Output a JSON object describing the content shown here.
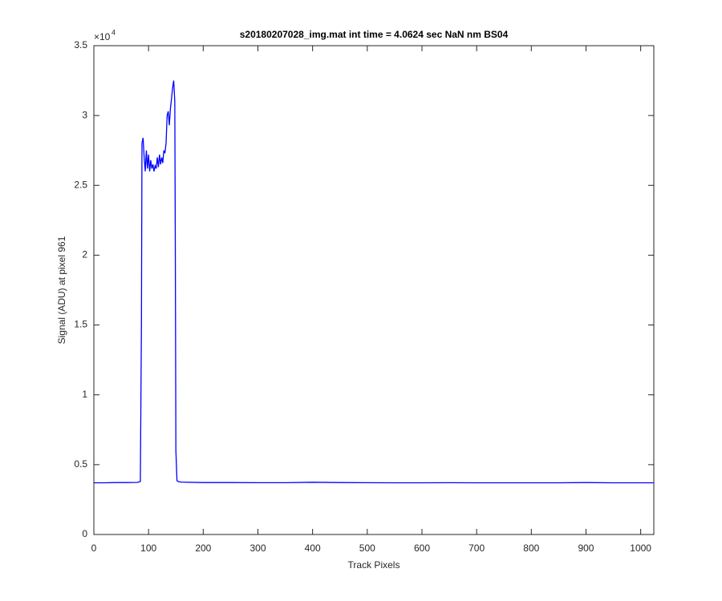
{
  "chart_data": {
    "type": "line",
    "title": "s20180207028_img.mat int time = 4.0624 sec  NaN nm BS04",
    "x_label": "Track Pixels",
    "y_label": "Signal (ADU) at pixel 961",
    "y_multiplier": {
      "base": "×10",
      "exponent": "4"
    },
    "xlim": [
      0,
      1024
    ],
    "xticks": [
      0,
      100,
      200,
      300,
      400,
      500,
      600,
      700,
      800,
      900,
      1000
    ],
    "ylim": [
      0,
      3.5
    ],
    "yticks": [
      0,
      0.5,
      1,
      1.5,
      2,
      2.5,
      3,
      3.5
    ],
    "grid": false,
    "series": [
      {
        "color": "#0000ff",
        "x": [
          0,
          20,
          40,
          60,
          80,
          85,
          87,
          88,
          90,
          92,
          94,
          96,
          98,
          100,
          102,
          104,
          106,
          108,
          110,
          112,
          114,
          116,
          118,
          120,
          122,
          124,
          126,
          128,
          130,
          132,
          134,
          136,
          138,
          140,
          142,
          144,
          146,
          148,
          149,
          150,
          152,
          155,
          160,
          200,
          250,
          300,
          350,
          400,
          450,
          500,
          550,
          600,
          650,
          700,
          750,
          800,
          850,
          900,
          950,
          1000,
          1024
        ],
        "values": [
          0.37,
          0.37,
          0.372,
          0.372,
          0.373,
          0.38,
          1.5,
          2.8,
          2.84,
          2.7,
          2.6,
          2.75,
          2.62,
          2.72,
          2.6,
          2.68,
          2.62,
          2.65,
          2.6,
          2.64,
          2.62,
          2.7,
          2.63,
          2.72,
          2.65,
          2.7,
          2.66,
          2.75,
          2.73,
          2.8,
          3.0,
          3.03,
          2.93,
          3.05,
          3.12,
          3.2,
          3.25,
          3.1,
          2.0,
          0.6,
          0.385,
          0.378,
          0.375,
          0.372,
          0.372,
          0.371,
          0.371,
          0.374,
          0.372,
          0.371,
          0.37,
          0.37,
          0.371,
          0.37,
          0.37,
          0.37,
          0.37,
          0.372,
          0.37,
          0.37,
          0.37
        ]
      }
    ]
  }
}
